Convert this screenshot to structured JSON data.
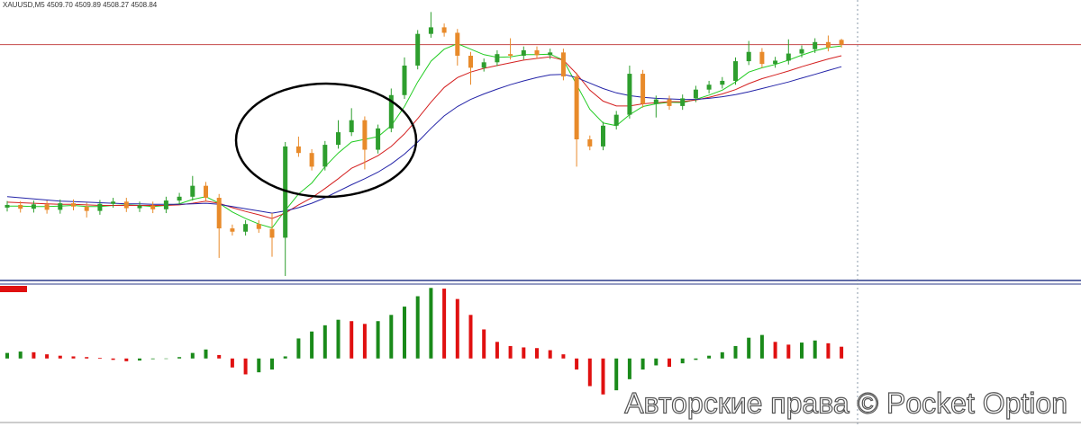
{
  "chart_data": [
    {
      "type": "candlestick",
      "title": "XAUUSD,M5  4509.70 4509.89 4508.27 4508.84",
      "ylim": [
        4466,
        4517
      ],
      "up_color": "#2e9e2e",
      "down_color": "#e88a2a",
      "price_line": 4508.84,
      "price_line_color": "#c44a4a",
      "open": [
        4479.0,
        4479.5,
        4478.8,
        4479.6,
        4478.6,
        4479.8,
        4479.2,
        4478.4,
        4479.7,
        4480.1,
        4478.9,
        4479.4,
        4478.7,
        4480.3,
        4481.0,
        4483.0,
        4480.8,
        4475.2,
        4474.6,
        4476.0,
        4475.1,
        4473.5,
        4490.2,
        4489.0,
        4486.5,
        4490.5,
        4492.8,
        4495.0,
        4489.6,
        4493.5,
        4499.6,
        4505.0,
        4510.8,
        4512.0,
        4511.0,
        4506.8,
        4504.6,
        4505.6,
        4507.1,
        4506.8,
        4507.8,
        4506.9,
        4507.4,
        4503.0,
        4491.5,
        4490.2,
        4494.0,
        4496.0,
        4503.5,
        4498.0,
        4498.8,
        4497.6,
        4499.0,
        4500.6,
        4501.5,
        4502.2,
        4505.8,
        4507.5,
        4505.3,
        4505.9,
        4507.2,
        4508.0,
        4509.3,
        4509.7
      ],
      "high": [
        4480.2,
        4480.2,
        4480.3,
        4480.3,
        4480.5,
        4480.5,
        4479.9,
        4480.4,
        4480.8,
        4480.8,
        4480.1,
        4480.1,
        4481.0,
        4481.7,
        4484.8,
        4483.7,
        4481.5,
        4475.9,
        4476.7,
        4476.7,
        4478.0,
        4491.0,
        4492.0,
        4489.7,
        4491.2,
        4495.0,
        4497.2,
        4495.7,
        4494.2,
        4500.8,
        4506.5,
        4511.5,
        4514.8,
        4512.7,
        4511.7,
        4507.5,
        4506.3,
        4507.8,
        4510.0,
        4508.5,
        4508.5,
        4508.1,
        4508.1,
        4503.7,
        4492.2,
        4494.7,
        4496.7,
        4505.0,
        4504.2,
        4499.5,
        4499.5,
        4499.7,
        4501.3,
        4502.2,
        4502.9,
        4506.5,
        4509.5,
        4508.2,
        4506.6,
        4509.8,
        4508.7,
        4510.0,
        4510.5,
        4509.89
      ],
      "low": [
        4478.3,
        4478.1,
        4478.1,
        4477.9,
        4477.9,
        4478.5,
        4477.2,
        4477.7,
        4479.0,
        4478.2,
        4478.2,
        4478.0,
        4478.0,
        4479.6,
        4480.3,
        4480.1,
        4469.8,
        4473.9,
        4473.9,
        4474.4,
        4470.0,
        4466.5,
        4488.3,
        4485.8,
        4485.8,
        4489.8,
        4492.1,
        4486.0,
        4488.9,
        4492.8,
        4498.9,
        4504.3,
        4510.1,
        4510.3,
        4505.0,
        4501.5,
        4503.9,
        4504.9,
        4506.1,
        4506.1,
        4506.2,
        4506.2,
        4502.3,
        4486.5,
        4489.5,
        4489.5,
        4493.3,
        4495.3,
        4497.3,
        4495.5,
        4496.9,
        4496.9,
        4498.3,
        4499.9,
        4500.8,
        4501.5,
        4505.1,
        4504.6,
        4504.6,
        4505.2,
        4506.5,
        4507.3,
        4507.6,
        4508.27
      ],
      "close": [
        4479.5,
        4478.8,
        4479.6,
        4478.6,
        4479.8,
        4479.2,
        4478.4,
        4479.7,
        4480.1,
        4478.9,
        4479.4,
        4478.7,
        4480.3,
        4481.0,
        4483.0,
        4480.8,
        4475.2,
        4474.6,
        4476.0,
        4475.1,
        4473.5,
        4490.2,
        4489.0,
        4486.5,
        4490.5,
        4492.8,
        4495.0,
        4489.6,
        4493.5,
        4499.6,
        4505.0,
        4510.8,
        4512.0,
        4511.0,
        4506.8,
        4504.6,
        4505.6,
        4507.1,
        4506.8,
        4507.8,
        4506.9,
        4507.4,
        4503.0,
        4491.5,
        4490.2,
        4494.0,
        4496.0,
        4503.5,
        4498.0,
        4498.8,
        4497.6,
        4499.0,
        4500.6,
        4501.5,
        4502.2,
        4505.8,
        4507.5,
        4505.3,
        4505.9,
        4507.2,
        4508.0,
        4509.3,
        4508.3,
        4508.84
      ],
      "series": [
        {
          "color": "#22cc22",
          "values": [
            4479.3,
            4479.3,
            4479.2,
            4479.2,
            4479.3,
            4479.4,
            4479.2,
            4479.2,
            4479.4,
            4479.5,
            4479.4,
            4479.2,
            4479.4,
            4479.7,
            4480.5,
            4481.0,
            4479.8,
            4478.2,
            4477.0,
            4476.0,
            4475.3,
            4478.5,
            4481.5,
            4483.5,
            4486.5,
            4489.0,
            4491.0,
            4491.5,
            4492.0,
            4494.0,
            4497.5,
            4502.0,
            4505.8,
            4508.0,
            4509.0,
            4508.0,
            4507.0,
            4506.5,
            4506.6,
            4507.0,
            4507.0,
            4507.1,
            4506.0,
            4501.5,
            4497.0,
            4494.5,
            4494.0,
            4496.0,
            4497.5,
            4498.0,
            4498.3,
            4498.2,
            4498.8,
            4499.6,
            4500.5,
            4502.0,
            4503.8,
            4504.6,
            4505.2,
            4506.0,
            4506.9,
            4507.7,
            4508.3,
            4508.6
          ]
        },
        {
          "color": "#d42020",
          "values": [
            4480.0,
            4479.9,
            4479.8,
            4479.7,
            4479.6,
            4479.6,
            4479.5,
            4479.4,
            4479.4,
            4479.4,
            4479.4,
            4479.4,
            4479.4,
            4479.5,
            4479.8,
            4480.2,
            4479.8,
            4479.0,
            4478.3,
            4477.7,
            4477.0,
            4478.0,
            4479.5,
            4480.8,
            4482.5,
            4484.3,
            4486.2,
            4487.3,
            4488.5,
            4490.2,
            4492.5,
            4495.3,
            4498.3,
            4501.0,
            4502.8,
            4503.8,
            4504.5,
            4505.0,
            4505.5,
            4506.0,
            4506.3,
            4506.6,
            4506.0,
            4503.5,
            4500.5,
            4498.5,
            4497.6,
            4497.6,
            4498.0,
            4498.2,
            4498.4,
            4498.4,
            4498.7,
            4499.2,
            4499.8,
            4500.6,
            4501.7,
            4502.6,
            4503.3,
            4504.0,
            4504.8,
            4505.5,
            4506.2,
            4506.8
          ]
        },
        {
          "color": "#2424a8",
          "values": [
            4481.0,
            4480.8,
            4480.6,
            4480.4,
            4480.2,
            4480.1,
            4480.0,
            4479.9,
            4479.8,
            4479.7,
            4479.7,
            4479.6,
            4479.6,
            4479.6,
            4479.7,
            4479.8,
            4479.6,
            4479.2,
            4478.8,
            4478.4,
            4478.0,
            4478.4,
            4479.0,
            4479.8,
            4480.8,
            4482.0,
            4483.2,
            4484.3,
            4485.5,
            4487.0,
            4488.8,
            4491.0,
            4493.5,
            4495.8,
            4497.5,
            4498.8,
            4499.8,
            4500.7,
            4501.5,
            4502.2,
            4502.8,
            4503.3,
            4503.4,
            4502.8,
            4501.8,
            4500.8,
            4500.0,
            4499.5,
            4499.2,
            4499.0,
            4498.9,
            4498.8,
            4498.8,
            4499.0,
            4499.3,
            4499.7,
            4500.2,
            4500.8,
            4501.4,
            4502.0,
            4502.7,
            4503.4,
            4504.1,
            4504.8
          ]
        }
      ]
    },
    {
      "type": "bar",
      "ylim": [
        -9,
        10.5
      ],
      "up_color": "#1a8a1a",
      "down_color": "#e01010",
      "values": [
        0.8,
        1.0,
        0.9,
        0.6,
        0.4,
        0.3,
        0.2,
        0.1,
        -0.2,
        -0.4,
        -0.3,
        -0.1,
        0.0,
        0.2,
        0.8,
        1.3,
        0.5,
        -1.3,
        -2.3,
        -2.0,
        -1.6,
        0.3,
        2.9,
        3.9,
        4.8,
        5.6,
        5.4,
        5.0,
        5.4,
        6.3,
        7.5,
        9.0,
        10.2,
        10.1,
        8.6,
        6.3,
        4.2,
        2.4,
        1.8,
        1.6,
        1.5,
        1.2,
        0.6,
        -1.6,
        -4.0,
        -5.2,
        -4.6,
        -3.0,
        -1.6,
        -1.0,
        -1.2,
        -0.7,
        -0.2,
        0.4,
        0.9,
        1.8,
        3.0,
        3.4,
        2.4,
        2.0,
        2.3,
        2.6,
        2.2,
        1.7
      ]
    }
  ],
  "watermark": "Авторские права © Pocket Option"
}
